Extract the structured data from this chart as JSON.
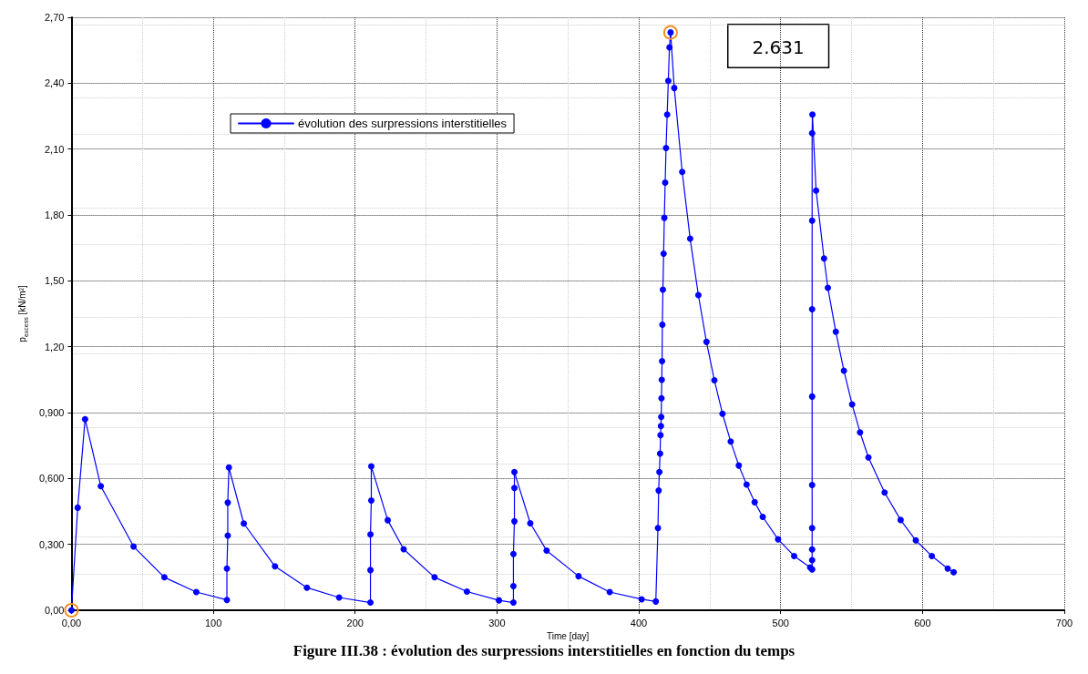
{
  "chart_data": {
    "type": "line",
    "xlabel": "Time [day]",
    "ylabel": "p$_{excess}$ [kN/m²]",
    "xlim": [
      0,
      700
    ],
    "xticks": [
      {
        "value": 0,
        "label": "0,00"
      },
      100,
      200,
      300,
      400,
      500,
      600,
      700
    ],
    "ylim": [
      0,
      2.7
    ],
    "yticks": [
      {
        "value": 0,
        "label": "0,00"
      },
      {
        "value": 0.3,
        "label": "0,300"
      },
      {
        "value": 0.6,
        "label": "0,600"
      },
      {
        "value": 0.9,
        "label": "0,900"
      },
      {
        "value": 1.2,
        "label": "1,20"
      },
      {
        "value": 1.5,
        "label": "1,50"
      },
      {
        "value": 1.8,
        "label": "1,80"
      },
      {
        "value": 2.1,
        "label": "2,10"
      },
      {
        "value": 2.4,
        "label": "2,40"
      },
      {
        "value": 2.7,
        "label": "2,70"
      }
    ],
    "grid": true,
    "legend": "top left",
    "marker": "circle",
    "line_style": "solid",
    "annotations": [
      "2.631",
      "Figure III.38 : évolution des surpressions interstitielles en fonction du temps"
    ],
    "series": [
      {
        "name": "évolution des surpressions interstitielles",
        "color": "#0000ff",
        "x": [
          0,
          4.4,
          9.6,
          20.7,
          43.8,
          65.5,
          88,
          109.6,
          109.6,
          110.2,
          110.2,
          111,
          121.5,
          143.5,
          166,
          188.7,
          210.8,
          210.8,
          210.8,
          211.4,
          211.4,
          223,
          234.2,
          256,
          278.8,
          301.4,
          311.6,
          311.6,
          311.6,
          312.3,
          312.3,
          312.3,
          323.5,
          335,
          357.5,
          379.5,
          402,
          412,
          413.5,
          414,
          414.5,
          415,
          415.3,
          415.6,
          415.8,
          416,
          416.2,
          416.4,
          416.6,
          417,
          417.5,
          418,
          418.6,
          419.2,
          420,
          420.8,
          421.6,
          422.4,
          425,
          430.6,
          436.2,
          442,
          447.7,
          453.3,
          459,
          464.8,
          470.5,
          476,
          481.7,
          487.4,
          498.2,
          509.5,
          520.8,
          522.2,
          522.2,
          522.2,
          522.2,
          522.2,
          522.2,
          522.2,
          522.2,
          522.2,
          522.4,
          525,
          530.6,
          533.3,
          538.9,
          544.6,
          550.4,
          556,
          561.9,
          573.3,
          584.6,
          595.3,
          606.6,
          617.8,
          622
        ],
        "values": [
          0,
          0.467,
          0.87,
          0.565,
          0.29,
          0.15,
          0.083,
          0.047,
          0.19,
          0.34,
          0.49,
          0.65,
          0.395,
          0.2,
          0.103,
          0.058,
          0.035,
          0.183,
          0.345,
          0.5,
          0.655,
          0.41,
          0.278,
          0.15,
          0.085,
          0.045,
          0.035,
          0.11,
          0.256,
          0.405,
          0.557,
          0.629,
          0.396,
          0.272,
          0.155,
          0.083,
          0.05,
          0.04,
          0.374,
          0.545,
          0.629,
          0.713,
          0.797,
          0.839,
          0.88,
          0.965,
          1.049,
          1.134,
          1.3,
          1.46,
          1.624,
          1.787,
          1.947,
          2.105,
          2.257,
          2.411,
          2.563,
          2.631,
          2.378,
          1.996,
          1.692,
          1.435,
          1.222,
          1.047,
          0.895,
          0.768,
          0.659,
          0.572,
          0.492,
          0.425,
          0.323,
          0.247,
          0.195,
          0.186,
          0.228,
          0.277,
          0.374,
          0.57,
          0.973,
          1.371,
          1.774,
          2.172,
          2.257,
          1.911,
          1.602,
          1.468,
          1.268,
          1.091,
          0.937,
          0.81,
          0.696,
          0.536,
          0.411,
          0.318,
          0.247,
          0.19,
          0.173
        ]
      }
    ]
  }
}
